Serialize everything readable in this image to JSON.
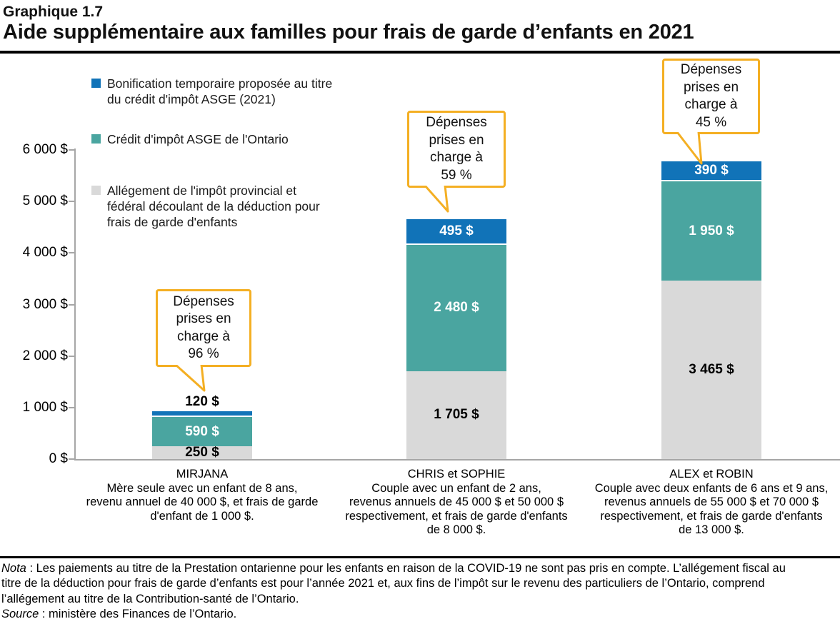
{
  "header": {
    "figure_number": "Graphique 1.7",
    "title": "Aide supplémentaire aux familles pour frais de garde d’enfants en 2021"
  },
  "legend": {
    "items": [
      {
        "color": "#1173B8",
        "label": "Bonification temporaire proposée au titre du crédit d'impôt ASGE (2021)",
        "lines": [
          "Bonification temporaire proposée au titre",
          "du crédit d'impôt ASGE (2021)"
        ]
      },
      {
        "color": "#4AA5A0",
        "label": "Crédit d'impôt ASGE de l'Ontario",
        "lines": [
          "Crédit d'impôt ASGE de l'Ontario"
        ]
      },
      {
        "color": "#D9D9D9",
        "label": "Allégement de l'impôt provincial et fédéral découlant de la déduction pour frais de garde d'enfants",
        "lines": [
          "Allégement de l'impôt provincial et",
          "fédéral découlant de la déduction pour",
          "frais de garde d'enfants"
        ]
      }
    ]
  },
  "chart_data": {
    "type": "bar",
    "stacked": true,
    "title": "Aide supplémentaire aux familles pour frais de garde d’enfants en 2021",
    "xlabel": "",
    "ylabel": "",
    "unit": "$",
    "ylim": [
      0,
      6000
    ],
    "grid": false,
    "legend_position": "top-left",
    "yticks": [
      {
        "value": 0,
        "label": "0 $"
      },
      {
        "value": 1000,
        "label": "1 000 $"
      },
      {
        "value": 2000,
        "label": "2 000 $"
      },
      {
        "value": 3000,
        "label": "3 000 $"
      },
      {
        "value": 4000,
        "label": "4 000 $"
      },
      {
        "value": 5000,
        "label": "5 000 $"
      },
      {
        "value": 6000,
        "label": "6 000 $"
      }
    ],
    "categories": [
      {
        "name": "MIRJANA",
        "description_lines": [
          "Mère seule avec un enfant de 8 ans,",
          "revenu annuel de 40 000 $, et frais de garde",
          "d'enfant de 1 000 $."
        ]
      },
      {
        "name": "CHRIS et SOPHIE",
        "description_lines": [
          "Couple avec un enfant de 2 ans,",
          "revenus annuels de 45 000 $ et 50 000 $",
          "respectivement, et frais de garde d'enfants",
          "de 8 000 $."
        ]
      },
      {
        "name": "ALEX et ROBIN",
        "description_lines": [
          "Couple avec deux enfants de 6 ans et 9 ans,",
          "revenus annuels de 55 000 $ et 70 000 $",
          "respectivement, et frais de garde d'enfants",
          "de 13 000 $."
        ]
      }
    ],
    "series": [
      {
        "name": "Allégement de l'impôt provincial et fédéral découlant de la déduction pour frais de garde d'enfants",
        "color": "#D9D9D9",
        "label_color": "#000000",
        "values": [
          250,
          1705,
          3465
        ],
        "value_labels": [
          "250 $",
          "1 705 $",
          "3 465 $"
        ]
      },
      {
        "name": "Crédit d'impôt ASGE de l'Ontario",
        "color": "#4AA5A0",
        "label_color": "#FFFFFF",
        "values": [
          590,
          2480,
          1950
        ],
        "value_labels": [
          "590 $",
          "2 480 $",
          "1 950 $"
        ]
      },
      {
        "name": "Bonification temporaire proposée au titre du crédit d'impôt ASGE (2021)",
        "color": "#1173B8",
        "label_color": "#FFFFFF",
        "values": [
          120,
          495,
          390
        ],
        "value_labels": [
          "120 $",
          "495 $",
          "390 $"
        ]
      }
    ],
    "callouts": [
      {
        "percent": 96,
        "text": "Dépenses prises en charge à 96 %",
        "lines": [
          "Dépenses",
          "prises en",
          "charge à",
          "96 %"
        ]
      },
      {
        "percent": 59,
        "text": "Dépenses prises en charge à 59 %",
        "lines": [
          "Dépenses",
          "prises en",
          "charge à",
          "59 %"
        ]
      },
      {
        "percent": 45,
        "text": "Dépenses prises en charge à 45 %",
        "lines": [
          "Dépenses",
          "prises en",
          "charge à",
          "45 %"
        ]
      }
    ]
  },
  "notes": {
    "nota_lead": "Nota",
    "nota_line1_rest": " : Les paiements au titre de la Prestation ontarienne pour les enfants en raison de la COVID-19  ne sont pas pris en compte. L’allégement fiscal au",
    "nota_line2": "titre de la déduction pour frais de garde d’enfants est pour l’année 2021 et, aux fins de l’impôt sur le revenu des particuliers de l’Ontario, comprend",
    "nota_line3": "l’allégement au titre de la Contribution-santé de l’Ontario.",
    "source_lead": "Source",
    "source_rest": " : ministère des Finances de l’Ontario."
  },
  "colors": {
    "bonification_blue": "#1173B8",
    "asge_teal": "#4AA5A0",
    "allegement_gray": "#D9D9D9",
    "callout_border": "#F4AF23",
    "axis_gray": "#A6A6A6",
    "rule_black": "#000000"
  }
}
